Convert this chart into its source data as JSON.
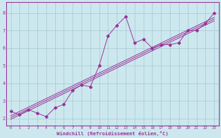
{
  "bg_color": "#cce8ee",
  "grid_color": "#aaccd4",
  "line_color": "#993399",
  "xlabel": "Windchill (Refroidissement éolien,°C)",
  "xlabel_color": "#993399",
  "xlim": [
    -0.5,
    23.5
  ],
  "ylim": [
    1.6,
    8.6
  ],
  "yticks": [
    2,
    3,
    4,
    5,
    6,
    7,
    8
  ],
  "xticks": [
    0,
    1,
    2,
    3,
    4,
    5,
    6,
    7,
    8,
    9,
    10,
    11,
    12,
    13,
    14,
    15,
    16,
    17,
    18,
    19,
    20,
    21,
    22,
    23
  ],
  "scatter_x": [
    0,
    1,
    2,
    3,
    4,
    5,
    6,
    7,
    8,
    9,
    10,
    11,
    12,
    13,
    14,
    15,
    16,
    17,
    18,
    19,
    20,
    21,
    22,
    23
  ],
  "scatter_y": [
    2.4,
    2.2,
    2.5,
    2.3,
    2.1,
    2.6,
    2.8,
    3.6,
    3.9,
    3.8,
    5.0,
    6.7,
    7.3,
    7.8,
    6.3,
    6.5,
    6.0,
    6.2,
    6.2,
    6.3,
    7.0,
    7.0,
    7.4,
    8.0
  ],
  "reg_lines": [
    {
      "x": [
        0,
        23
      ],
      "y": [
        1.95,
        7.55
      ]
    },
    {
      "x": [
        0,
        23
      ],
      "y": [
        2.05,
        7.65
      ]
    },
    {
      "x": [
        0,
        23
      ],
      "y": [
        2.15,
        7.75
      ]
    }
  ]
}
